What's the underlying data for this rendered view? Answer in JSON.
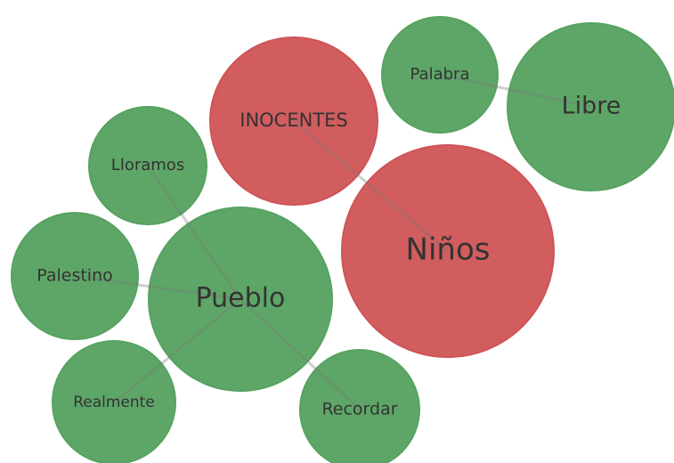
{
  "nodes": [
    {
      "label": "Palabra",
      "color": "#5aaa64"
    },
    {
      "label": "Libre",
      "color": "#5aaa64"
    },
    {
      "label": "INOCENTES",
      "color": "#d9585a"
    },
    {
      "label": "Niños",
      "color": "#d9585a"
    },
    {
      "label": "Lloramos",
      "color": "#5aaa64"
    },
    {
      "label": "Pueblo",
      "color": "#5aaa64"
    },
    {
      "label": "Palestino",
      "color": "#5aaa64"
    },
    {
      "label": "Realmente",
      "color": "#5aaa64"
    },
    {
      "label": "Recordar",
      "color": "#5aaa64"
    }
  ]
}
